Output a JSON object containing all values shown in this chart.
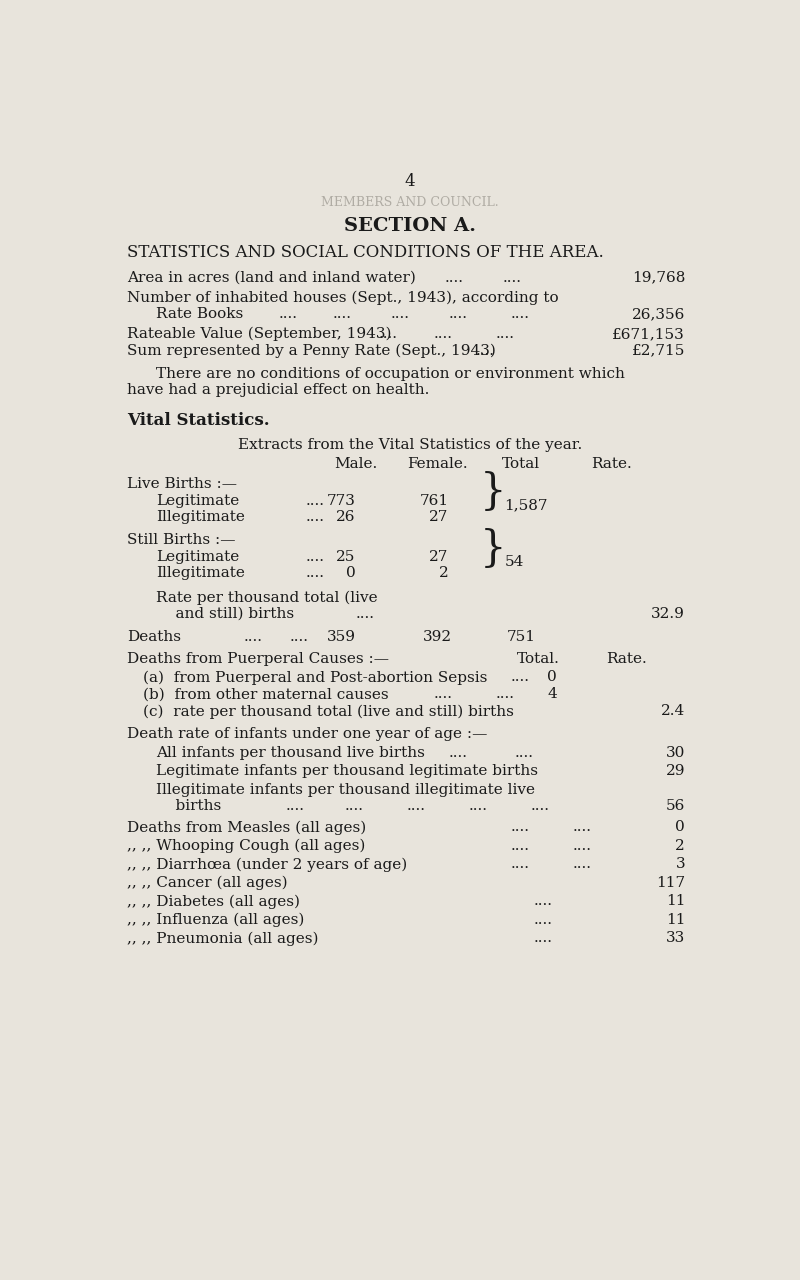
{
  "page_number": "4",
  "watermark_text": "MEMBERS AND COUNCIL.",
  "section_title": "SECTION A.",
  "main_title": "STATISTICS AND SOCIAL CONDITIONS OF THE AREA.",
  "bg_color": "#e8e4dc",
  "text_color": "#1a1a1a",
  "condition_text_1": "There are no conditions of occupation or environment which",
  "condition_text_2": "have had a prejudicial effect on health.",
  "vital_heading": "Vital Statistics.",
  "extracts_heading": "Extracts from the Vital Statistics of the year.",
  "col_headers": [
    "Male.",
    "Female.",
    "Total",
    "Rate."
  ],
  "live_births_label": "Live Births :—",
  "live_legit_label": "Legitimate",
  "live_legit_male": "773",
  "live_legit_female": "761",
  "live_illegit_label": "Illegitimate",
  "live_illegit_male": "26",
  "live_illegit_female": "27",
  "live_total": "1,587",
  "still_births_label": "Still Births :—",
  "still_legit_label": "Legitimate",
  "still_legit_male": "25",
  "still_legit_female": "27",
  "still_illegit_label": "Illegitimate",
  "still_illegit_male": "0",
  "still_illegit_female": "2",
  "still_total": "54",
  "rate_per_thousand_value": "32.9",
  "deaths_male": "359",
  "deaths_female": "392",
  "deaths_total": "751",
  "puerperal_total_label": "Total.",
  "puerperal_rate_label": "Rate.",
  "puerperal_a_value": "0",
  "puerperal_b_value": "4",
  "puerperal_c_value": "2.4",
  "infant_all_value": "30",
  "infant_legit_value": "29",
  "infant_illegit_value": "56",
  "disease_rows": [
    {
      "label": "Deaths from Measles (all ages)",
      "dots": ".... ....",
      "value": "0"
    },
    {
      "„„_label": "„„   „„  Whooping Cough (all ages)",
      "dots": "....",
      "value": "2"
    },
    {
      "„„_label": "„„   „„  Diarrhœa (under 2 years of age)",
      "dots": "....",
      "value": "3"
    },
    {
      "„„_label": "„„   „„  Cancer (all ages)",
      "dots": "",
      "value": "117"
    },
    {
      "„„_label": "„„   „„  Diabetes (all ages)",
      "dots": "....",
      "value": "11"
    },
    {
      "„„_label": "„„   „„  Influenza (all ages)",
      "dots": "....",
      "value": "11"
    },
    {
      "„„_label": "„„   „„  Pneumonia (all ages)",
      "dots": "....",
      "value": "33"
    }
  ]
}
